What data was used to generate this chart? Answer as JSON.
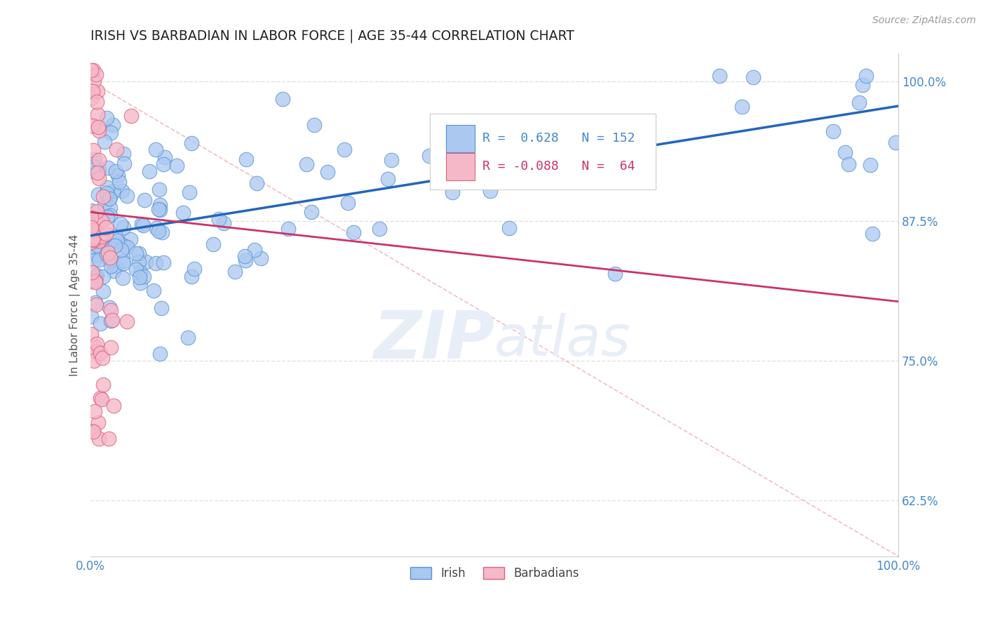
{
  "title": "IRISH VS BARBADIAN IN LABOR FORCE | AGE 35-44 CORRELATION CHART",
  "source": "Source: ZipAtlas.com",
  "ylabel": "In Labor Force | Age 35-44",
  "xlim": [
    0.0,
    1.0
  ],
  "ylim": [
    0.575,
    1.025
  ],
  "yticks": [
    0.625,
    0.75,
    0.875,
    1.0
  ],
  "ytick_labels": [
    "62.5%",
    "75.0%",
    "87.5%",
    "100.0%"
  ],
  "xtick_labels_left": "0.0%",
  "xtick_labels_right": "100.0%",
  "irish_R": 0.628,
  "irish_N": 152,
  "barbadian_R": -0.088,
  "barbadian_N": 64,
  "irish_fill_color": "#aac8f0",
  "irish_edge_color": "#5591d4",
  "barbadian_fill_color": "#f5b8c8",
  "barbadian_edge_color": "#e0607a",
  "irish_line_color": "#2266bb",
  "barbadian_line_color": "#cc3366",
  "diag_line_color": "#f0a0b0",
  "grid_color": "#dddddd",
  "background_color": "#ffffff",
  "watermark_color": "#e8eef8",
  "legend_irish_fill": "#aac8f0",
  "legend_irish_edge": "#5591d4",
  "legend_barb_fill": "#f5b8c8",
  "legend_barb_edge": "#e0607a",
  "title_color": "#222222",
  "axis_tick_color": "#4488cc",
  "ylabel_color": "#555555",
  "source_color": "#999999"
}
